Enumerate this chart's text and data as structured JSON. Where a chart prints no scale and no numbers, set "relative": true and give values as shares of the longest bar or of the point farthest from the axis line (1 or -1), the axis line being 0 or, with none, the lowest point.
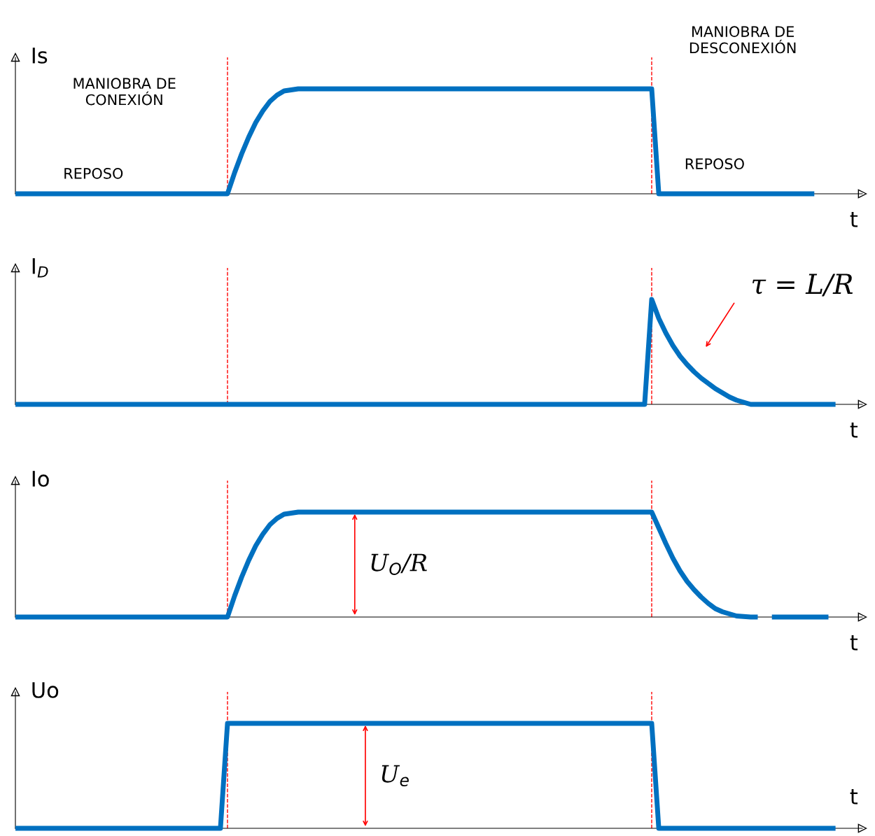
{
  "chart_data": [
    {
      "type": "line",
      "relative": true,
      "ylabel": "Is",
      "xlabel": "t",
      "marker": "none",
      "line_style": "solid",
      "annotations": [
        "REPOSO",
        "MANIOBRA DE CONEXIÓN",
        "MANIOBRA DE DESCONEXIÓN",
        "REPOSO"
      ],
      "categories": [
        null,
        null,
        null,
        null,
        null,
        null,
        null,
        null,
        null,
        null,
        null,
        null,
        null,
        null,
        null,
        null,
        null,
        null,
        null,
        null,
        null,
        null,
        null,
        null,
        null,
        null,
        null,
        null,
        null,
        null,
        null,
        null,
        null,
        null,
        null,
        null,
        null,
        null,
        null,
        null,
        null,
        null,
        null,
        null,
        null,
        null,
        null,
        null,
        null,
        null,
        null,
        null,
        null,
        null,
        null,
        null,
        null,
        null,
        null,
        null,
        null,
        null,
        null,
        null,
        null,
        null,
        null,
        null,
        null,
        null,
        null,
        null,
        null,
        null,
        null,
        null,
        null,
        null,
        null,
        null,
        null,
        null,
        null,
        null,
        null,
        null,
        null,
        null,
        null,
        null,
        null,
        null,
        null,
        null,
        null,
        null,
        null,
        null,
        null,
        null,
        null,
        null,
        null,
        null,
        null,
        null,
        null,
        null,
        null,
        null,
        null,
        null,
        null,
        null,
        null,
        null,
        null,
        null,
        null,
        null
      ],
      "series": [
        {
          "color": "#0070c0",
          "values": [
            0,
            0,
            0,
            0,
            0,
            0,
            0,
            0,
            0,
            0,
            0,
            0,
            0,
            0,
            0,
            0,
            0,
            0,
            0,
            0,
            0,
            0,
            0,
            0,
            0,
            0,
            0,
            0,
            0,
            0,
            0,
            0.2,
            0.38,
            0.54,
            0.68,
            0.79,
            0.88,
            0.94,
            0.98,
            0.99,
            1,
            1,
            1,
            1,
            1,
            1,
            1,
            1,
            1,
            1,
            1,
            1,
            1,
            1,
            1,
            1,
            1,
            1,
            1,
            1,
            1,
            1,
            1,
            1,
            1,
            1,
            1,
            1,
            1,
            1,
            1,
            1,
            1,
            1,
            1,
            1,
            1,
            1,
            1,
            1,
            1,
            1,
            1,
            1,
            1,
            1,
            1,
            1,
            1,
            1,
            1,
            0,
            0,
            0,
            0,
            0,
            0,
            0,
            0,
            0,
            0,
            0,
            0,
            0,
            0,
            0,
            0,
            0,
            0,
            0,
            0,
            0,
            0,
            0,
            null,
            null,
            null,
            null,
            null,
            null
          ]
        }
      ]
    },
    {
      "type": "line",
      "relative": true,
      "ylabel": "I$_{D}$",
      "xlabel": "t",
      "marker": "none",
      "line_style": "solid",
      "annotations": [
        "τ = L/R"
      ],
      "categories": [
        null,
        null,
        null,
        null,
        null,
        null,
        null,
        null,
        null,
        null,
        null,
        null,
        null,
        null,
        null,
        null,
        null,
        null,
        null,
        null,
        null,
        null,
        null,
        null,
        null,
        null,
        null,
        null,
        null,
        null,
        null,
        null,
        null,
        null,
        null,
        null,
        null,
        null,
        null,
        null,
        null,
        null,
        null,
        null,
        null,
        null,
        null,
        null,
        null,
        null,
        null,
        null,
        null,
        null,
        null,
        null,
        null,
        null,
        null,
        null,
        null,
        null,
        null,
        null,
        null,
        null,
        null,
        null,
        null,
        null,
        null,
        null,
        null,
        null,
        null,
        null,
        null,
        null,
        null,
        null,
        null,
        null,
        null,
        null,
        null,
        null,
        null,
        null,
        null,
        null,
        null,
        null,
        null,
        null,
        null,
        null,
        null,
        null,
        null,
        null,
        null,
        null,
        null,
        null,
        null,
        null,
        null,
        null,
        null,
        null,
        null,
        null,
        null,
        null,
        null,
        null,
        null,
        null,
        null,
        null
      ],
      "series": [
        {
          "color": "#0070c0",
          "values": [
            0,
            0,
            0,
            0,
            0,
            0,
            0,
            0,
            0,
            0,
            0,
            0,
            0,
            0,
            0,
            0,
            0,
            0,
            0,
            0,
            0,
            0,
            0,
            0,
            0,
            0,
            0,
            0,
            0,
            0,
            0,
            0,
            0,
            0,
            0,
            0,
            0,
            0,
            0,
            0,
            0,
            0,
            0,
            0,
            0,
            0,
            0,
            0,
            0,
            0,
            0,
            0,
            0,
            0,
            0,
            0,
            0,
            0,
            0,
            0,
            0,
            0,
            0,
            0,
            0,
            0,
            0,
            0,
            0,
            0,
            0,
            0,
            0,
            0,
            0,
            0,
            0,
            0,
            0,
            0,
            0,
            0,
            0,
            0,
            0,
            0,
            0,
            0,
            0,
            0,
            1,
            0.82,
            0.68,
            0.56,
            0.46,
            0.38,
            0.31,
            0.25,
            0.2,
            0.15,
            0.11,
            0.07,
            0.04,
            0.02,
            0,
            0,
            0,
            0,
            0,
            0,
            0,
            0,
            0,
            0,
            0,
            0,
            0,
            null,
            null,
            null
          ]
        }
      ]
    },
    {
      "type": "line",
      "relative": true,
      "ylabel": "Io",
      "xlabel": "t",
      "marker": "none",
      "line_style": "solid",
      "annotations": [
        "U$_{O}$/R"
      ],
      "categories": [
        null,
        null,
        null,
        null,
        null,
        null,
        null,
        null,
        null,
        null,
        null,
        null,
        null,
        null,
        null,
        null,
        null,
        null,
        null,
        null,
        null,
        null,
        null,
        null,
        null,
        null,
        null,
        null,
        null,
        null,
        null,
        null,
        null,
        null,
        null,
        null,
        null,
        null,
        null,
        null,
        null,
        null,
        null,
        null,
        null,
        null,
        null,
        null,
        null,
        null,
        null,
        null,
        null,
        null,
        null,
        null,
        null,
        null,
        null,
        null,
        null,
        null,
        null,
        null,
        null,
        null,
        null,
        null,
        null,
        null,
        null,
        null,
        null,
        null,
        null,
        null,
        null,
        null,
        null,
        null,
        null,
        null,
        null,
        null,
        null,
        null,
        null,
        null,
        null,
        null,
        null,
        null,
        null,
        null,
        null,
        null,
        null,
        null,
        null,
        null,
        null,
        null,
        null,
        null,
        null,
        null,
        null,
        null,
        null,
        null,
        null,
        null,
        null,
        null,
        null,
        null,
        null,
        null,
        null,
        null
      ],
      "series": [
        {
          "color": "#0070c0",
          "values": [
            0,
            0,
            0,
            0,
            0,
            0,
            0,
            0,
            0,
            0,
            0,
            0,
            0,
            0,
            0,
            0,
            0,
            0,
            0,
            0,
            0,
            0,
            0,
            0,
            0,
            0,
            0,
            0,
            0,
            0,
            0,
            0.2,
            0.38,
            0.54,
            0.68,
            0.79,
            0.88,
            0.94,
            0.98,
            0.99,
            1,
            1,
            1,
            1,
            1,
            1,
            1,
            1,
            1,
            1,
            1,
            1,
            1,
            1,
            1,
            1,
            1,
            1,
            1,
            1,
            1,
            1,
            1,
            1,
            1,
            1,
            1,
            1,
            1,
            1,
            1,
            1,
            1,
            1,
            1,
            1,
            1,
            1,
            1,
            1,
            1,
            1,
            1,
            1,
            1,
            1,
            1,
            1,
            1,
            1,
            1,
            0.85,
            0.7,
            0.56,
            0.44,
            0.34,
            0.26,
            0.19,
            0.13,
            0.08,
            0.05,
            0.03,
            0.01,
            0.005,
            0,
            0,
            null,
            0,
            0,
            0,
            0,
            0,
            0,
            0,
            0,
            0,
            null,
            null,
            null,
            null
          ]
        }
      ]
    },
    {
      "type": "line",
      "relative": true,
      "ylabel": "Uo",
      "xlabel": "t",
      "marker": "none",
      "line_style": "solid",
      "annotations": [
        "U$_{e}$"
      ],
      "categories": [
        null,
        null,
        null,
        null,
        null,
        null,
        null,
        null,
        null,
        null,
        null,
        null,
        null,
        null,
        null,
        null,
        null,
        null,
        null,
        null,
        null,
        null,
        null,
        null,
        null,
        null,
        null,
        null,
        null,
        null,
        null,
        null,
        null,
        null,
        null,
        null,
        null,
        null,
        null,
        null,
        null,
        null,
        null,
        null,
        null,
        null,
        null,
        null,
        null,
        null,
        null,
        null,
        null,
        null,
        null,
        null,
        null,
        null,
        null,
        null,
        null,
        null,
        null,
        null,
        null,
        null,
        null,
        null,
        null,
        null,
        null,
        null,
        null,
        null,
        null,
        null,
        null,
        null,
        null,
        null,
        null,
        null,
        null,
        null,
        null,
        null,
        null,
        null,
        null,
        null,
        null,
        null,
        null,
        null,
        null,
        null,
        null,
        null,
        null,
        null,
        null,
        null,
        null,
        null,
        null,
        null,
        null,
        null,
        null,
        null,
        null,
        null,
        null,
        null,
        null,
        null,
        null,
        null,
        null,
        null
      ],
      "series": [
        {
          "color": "#0070c0",
          "values": [
            0,
            0,
            0,
            0,
            0,
            0,
            0,
            0,
            0,
            0,
            0,
            0,
            0,
            0,
            0,
            0,
            0,
            0,
            0,
            0,
            0,
            0,
            0,
            0,
            0,
            0,
            0,
            0,
            0,
            0,
            1,
            1,
            1,
            1,
            1,
            1,
            1,
            1,
            1,
            1,
            1,
            1,
            1,
            1,
            1,
            1,
            1,
            1,
            1,
            1,
            1,
            1,
            1,
            1,
            1,
            1,
            1,
            1,
            1,
            1,
            1,
            1,
            1,
            1,
            1,
            1,
            1,
            1,
            1,
            1,
            1,
            1,
            1,
            1,
            1,
            1,
            1,
            1,
            1,
            1,
            1,
            1,
            1,
            1,
            1,
            1,
            1,
            1,
            1,
            1,
            1,
            0,
            0,
            0,
            0,
            0,
            0,
            0,
            0,
            0,
            0,
            0,
            0,
            0,
            0,
            0,
            0,
            0,
            0,
            0,
            0,
            0,
            0,
            0,
            0,
            0,
            0,
            null,
            null,
            null
          ]
        }
      ]
    }
  ]
}
